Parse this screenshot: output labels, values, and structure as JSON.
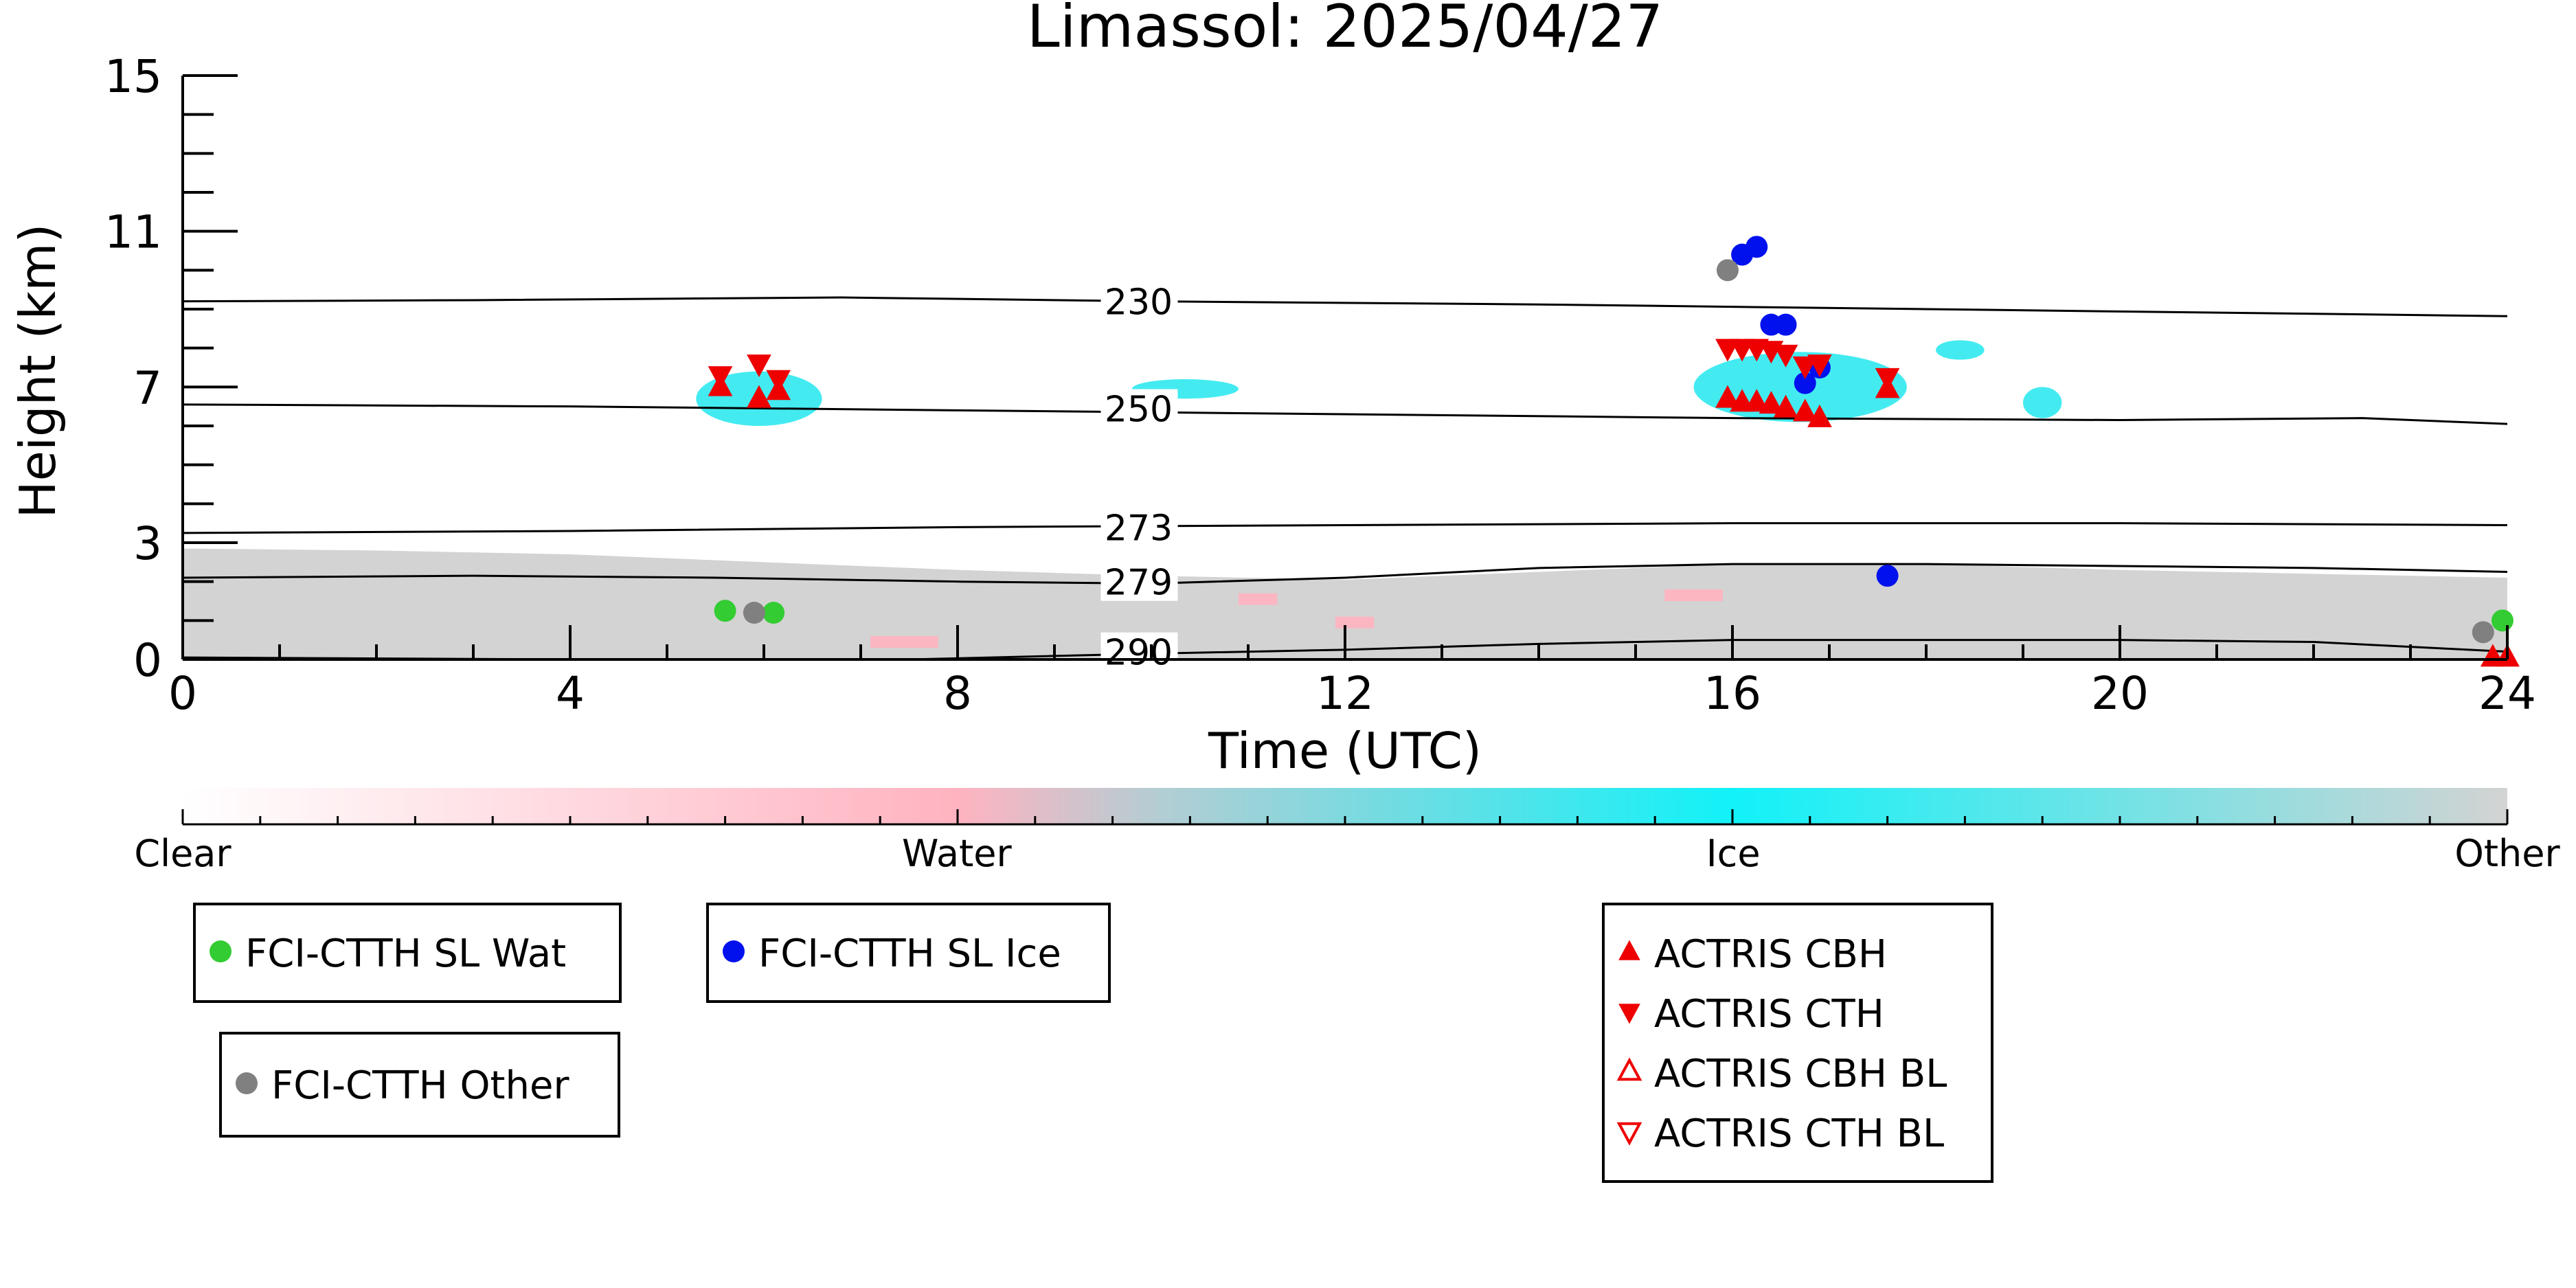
{
  "chart_data": {
    "type": "scatter",
    "title": "Limassol: 2025/04/27",
    "xlabel": "Time (UTC)",
    "ylabel": "Height (km)",
    "xlim": [
      0,
      24
    ],
    "ylim": [
      0,
      15
    ],
    "x_major_ticks": [
      0,
      4,
      8,
      12,
      16,
      20,
      24
    ],
    "x_minor_step": 1,
    "y_major_ticks": [
      0,
      3,
      7,
      11,
      15
    ],
    "y_minor_ticks": [
      1,
      2,
      4,
      5,
      6,
      8,
      9,
      10,
      12,
      13,
      14
    ],
    "grid": false,
    "colors": {
      "wat": "#33cc33",
      "ice": "#0011ee",
      "other": "#808080",
      "actris": "#ee0000",
      "ice_cloud": "#22e8ee",
      "bl_layer": "#d3d3d3",
      "water_cloud": "#ffb3c0"
    },
    "isotherms": [
      {
        "label": "230",
        "label_x": 9.5,
        "label_y": 9.2,
        "points": [
          [
            0,
            9.2
          ],
          [
            3,
            9.23
          ],
          [
            6.8,
            9.3
          ],
          [
            10,
            9.2
          ],
          [
            14,
            9.12
          ],
          [
            18,
            9.0
          ],
          [
            24,
            8.82
          ]
        ]
      },
      {
        "label": "250",
        "label_x": 9.5,
        "label_y": 6.45,
        "points": [
          [
            0,
            6.55
          ],
          [
            4,
            6.5
          ],
          [
            8,
            6.4
          ],
          [
            12,
            6.3
          ],
          [
            16,
            6.2
          ],
          [
            20,
            6.15
          ],
          [
            22.5,
            6.2
          ],
          [
            24,
            6.05
          ]
        ]
      },
      {
        "label": "273",
        "label_x": 9.5,
        "label_y": 3.4,
        "points": [
          [
            0,
            3.25
          ],
          [
            4,
            3.3
          ],
          [
            8,
            3.4
          ],
          [
            12,
            3.45
          ],
          [
            16,
            3.5
          ],
          [
            20,
            3.5
          ],
          [
            24,
            3.45
          ]
        ]
      },
      {
        "label": "279",
        "label_x": 9.5,
        "label_y": 2.0,
        "points": [
          [
            0,
            2.1
          ],
          [
            3,
            2.15
          ],
          [
            5.5,
            2.1
          ],
          [
            8,
            2.0
          ],
          [
            10,
            1.95
          ],
          [
            12,
            2.1
          ],
          [
            14,
            2.35
          ],
          [
            16,
            2.45
          ],
          [
            18,
            2.45
          ],
          [
            20,
            2.4
          ],
          [
            22,
            2.35
          ],
          [
            24,
            2.25
          ]
        ]
      },
      {
        "label": "290",
        "label_x": 9.5,
        "label_y": 0.2,
        "points": [
          [
            0,
            0.05
          ],
          [
            4,
            0.0
          ],
          [
            7.5,
            0.0
          ],
          [
            10,
            0.15
          ],
          [
            12,
            0.25
          ],
          [
            14,
            0.4
          ],
          [
            16,
            0.5
          ],
          [
            18,
            0.5
          ],
          [
            20,
            0.5
          ],
          [
            22,
            0.45
          ],
          [
            24,
            0.2
          ]
        ]
      }
    ],
    "boundary_layer": {
      "points": [
        [
          0,
          2.85
        ],
        [
          2,
          2.8
        ],
        [
          4,
          2.7
        ],
        [
          6,
          2.5
        ],
        [
          8,
          2.3
        ],
        [
          10,
          2.15
        ],
        [
          12,
          2.05
        ],
        [
          14,
          2.25
        ],
        [
          16,
          2.45
        ],
        [
          18,
          2.45
        ],
        [
          20,
          2.3
        ],
        [
          22,
          2.2
        ],
        [
          24,
          2.1
        ]
      ]
    },
    "ice_clouds": [
      {
        "x0": 5.3,
        "x1": 6.6,
        "y0": 6.0,
        "y1": 7.4
      },
      {
        "x0": 9.8,
        "x1": 10.9,
        "y0": 6.7,
        "y1": 7.2
      },
      {
        "x0": 15.6,
        "x1": 17.8,
        "y0": 6.1,
        "y1": 7.9
      },
      {
        "x0": 18.1,
        "x1": 18.6,
        "y0": 7.7,
        "y1": 8.2
      },
      {
        "x0": 19.0,
        "x1": 19.4,
        "y0": 6.2,
        "y1": 7.0
      }
    ],
    "water_clouds": [
      {
        "x0": 7.1,
        "x1": 7.8,
        "y0": 0.3,
        "y1": 0.6
      },
      {
        "x0": 10.9,
        "x1": 11.3,
        "y0": 1.4,
        "y1": 1.7
      },
      {
        "x0": 11.9,
        "x1": 12.3,
        "y0": 0.8,
        "y1": 1.1
      },
      {
        "x0": 15.3,
        "x1": 15.9,
        "y0": 1.5,
        "y1": 1.8
      }
    ],
    "series": [
      {
        "name": "FCI-CTTH SL Wat",
        "marker": "circle",
        "color": "#33cc33",
        "points": [
          [
            5.6,
            1.25
          ],
          [
            6.1,
            1.2
          ],
          [
            23.95,
            1.0
          ]
        ]
      },
      {
        "name": "FCI-CTTH SL Ice",
        "marker": "circle",
        "color": "#0011ee",
        "points": [
          [
            16.1,
            10.4
          ],
          [
            16.25,
            10.6
          ],
          [
            16.4,
            8.6
          ],
          [
            16.55,
            8.6
          ],
          [
            16.9,
            7.5
          ],
          [
            16.75,
            7.1
          ],
          [
            17.6,
            2.15
          ]
        ]
      },
      {
        "name": "FCI-CTTH Other",
        "marker": "circle",
        "color": "#808080",
        "points": [
          [
            5.9,
            1.2
          ],
          [
            15.95,
            10.0
          ],
          [
            23.75,
            0.7
          ]
        ]
      },
      {
        "name": "ACTRIS CBH",
        "marker": "triangle-up",
        "color": "#ee0000",
        "points": [
          [
            5.55,
            7.0
          ],
          [
            5.95,
            6.7
          ],
          [
            6.15,
            6.9
          ],
          [
            15.95,
            6.7
          ],
          [
            16.1,
            6.6
          ],
          [
            16.25,
            6.6
          ],
          [
            16.4,
            6.55
          ],
          [
            16.55,
            6.45
          ],
          [
            16.75,
            6.35
          ],
          [
            16.9,
            6.2
          ],
          [
            17.6,
            6.95
          ],
          [
            23.85,
            0.05
          ],
          [
            24.0,
            0.05
          ]
        ]
      },
      {
        "name": "ACTRIS CTH",
        "marker": "triangle-down",
        "color": "#ee0000",
        "points": [
          [
            5.55,
            7.3
          ],
          [
            5.95,
            7.6
          ],
          [
            6.15,
            7.2
          ],
          [
            15.95,
            8.0
          ],
          [
            16.1,
            8.0
          ],
          [
            16.25,
            8.0
          ],
          [
            16.4,
            7.95
          ],
          [
            16.55,
            7.85
          ],
          [
            16.75,
            7.55
          ],
          [
            16.9,
            7.6
          ],
          [
            17.6,
            7.25
          ]
        ]
      },
      {
        "name": "ACTRIS CBH BL",
        "marker": "triangle-up-open",
        "color": "#ee0000",
        "points": []
      },
      {
        "name": "ACTRIS CTH BL",
        "marker": "triangle-down-open",
        "color": "#ee0000",
        "points": []
      }
    ],
    "colorbar": {
      "labels": [
        {
          "text": "Clear",
          "pos": 0.0
        },
        {
          "text": "Water",
          "pos": 0.333
        },
        {
          "text": "Ice",
          "pos": 0.667
        },
        {
          "text": "Other",
          "pos": 1.0
        }
      ],
      "stops": [
        {
          "pos": 0.0,
          "color": "#ffffff"
        },
        {
          "pos": 0.333,
          "color": "#ffb3c0"
        },
        {
          "pos": 0.42,
          "color": "#b3cdd3"
        },
        {
          "pos": 0.667,
          "color": "#11f2f8"
        },
        {
          "pos": 1.0,
          "color": "#d3d3d3"
        }
      ]
    },
    "legends": [
      {
        "entries": [
          0
        ]
      },
      {
        "entries": [
          1
        ]
      },
      {
        "entries": [
          2
        ]
      },
      {
        "entries": [
          3,
          4,
          5,
          6
        ]
      }
    ]
  }
}
